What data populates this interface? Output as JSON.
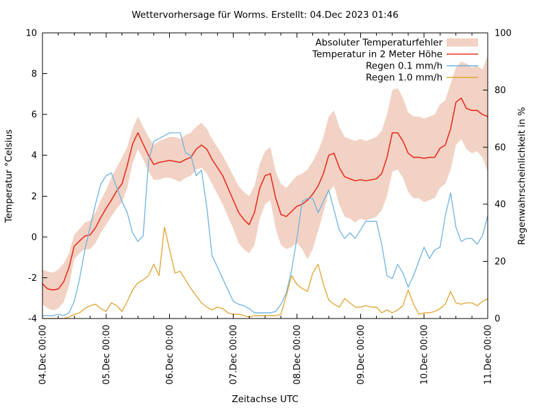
{
  "title": "Wettervorhersage für Worms. Erstellt: 04.Dec 2023 01:46",
  "chart_data": {
    "type": "line",
    "title": "Wettervorhersage für Worms. Erstellt: 04.Dec 2023 01:46",
    "xlabel": "Zeitachse UTC",
    "ylabel_left": "Temperatur °Celsius",
    "ylabel_right": "Regenwahrscheinlichkeit in %",
    "x_tick_labels": [
      "04.Dec 00:00",
      "05.Dec 00:00",
      "06.Dec 00:00",
      "07.Dec 00:00",
      "08.Dec 00:00",
      "09.Dec 00:00",
      "10.Dec 00:00",
      "11.Dec 00:00"
    ],
    "x_range_hours": [
      0,
      168
    ],
    "x_step_hours": 2,
    "x_major_tick_hours": 24,
    "x_minor_tick_hours": 6,
    "y_left_range": [
      -4,
      10
    ],
    "y_left_ticks": [
      -4,
      -2,
      0,
      2,
      4,
      6,
      8,
      10
    ],
    "y_right_range": [
      0,
      100
    ],
    "y_right_ticks": [
      0,
      20,
      40,
      60,
      80,
      100
    ],
    "grid": false,
    "legend_position": "top-right-inside",
    "colors": {
      "temperature_error_band": "#f2d2c4",
      "temperature_line": "#e62e1f",
      "rain_0_1_line": "#6cb1e1",
      "rain_1_0_line": "#e0a12b",
      "axis": "#000000",
      "background": "#ffffff"
    },
    "legend": [
      {
        "label": "Absoluter Temperaturfehler",
        "swatch": "band",
        "series": "temperature_error"
      },
      {
        "label": "Temperatur in 2 Meter Höhe",
        "swatch": "line",
        "series": "temperature"
      },
      {
        "label": "Regen 0.1 mm/h",
        "swatch": "line",
        "series": "rain_0_1"
      },
      {
        "label": "Regen 1.0 mm/h",
        "swatch": "line",
        "series": "rain_1_0"
      }
    ],
    "series": {
      "temperature_c": [
        -2.3,
        -2.55,
        -2.6,
        -2.55,
        -2.2,
        -1.5,
        -0.45,
        -0.2,
        0.05,
        0.1,
        0.45,
        0.95,
        1.4,
        1.8,
        2.25,
        2.6,
        3.5,
        4.55,
        5.1,
        4.55,
        4.0,
        3.55,
        3.65,
        3.7,
        3.75,
        3.7,
        3.65,
        3.8,
        3.9,
        4.3,
        4.5,
        4.3,
        3.8,
        3.4,
        3.0,
        2.4,
        1.8,
        1.2,
        0.85,
        0.6,
        1.2,
        2.4,
        3.0,
        3.1,
        1.9,
        1.1,
        1.0,
        1.25,
        1.5,
        1.6,
        1.8,
        2.1,
        2.5,
        3.1,
        4.0,
        4.1,
        3.4,
        2.95,
        2.85,
        2.75,
        2.8,
        2.75,
        2.8,
        2.85,
        3.1,
        3.9,
        5.1,
        5.1,
        4.7,
        4.1,
        3.9,
        3.9,
        3.85,
        3.9,
        3.9,
        4.35,
        4.5,
        5.3,
        6.6,
        6.8,
        6.3,
        6.2,
        6.2,
        6.0,
        5.9
      ],
      "temperature_error_upper_c": [
        -1.6,
        -1.7,
        -1.75,
        -1.6,
        -1.3,
        -0.8,
        0.1,
        0.4,
        0.7,
        0.8,
        1.2,
        1.8,
        2.3,
        2.9,
        3.4,
        3.9,
        4.4,
        5.3,
        5.9,
        5.4,
        4.9,
        4.5,
        4.7,
        4.8,
        4.9,
        4.9,
        4.8,
        5.0,
        5.1,
        5.4,
        5.6,
        5.3,
        4.8,
        4.4,
        4.0,
        3.5,
        3.0,
        2.5,
        2.2,
        2.0,
        2.5,
        3.6,
        4.2,
        4.4,
        3.2,
        2.6,
        2.4,
        2.7,
        3.0,
        3.1,
        3.3,
        3.7,
        4.2,
        4.9,
        5.9,
        6.2,
        5.4,
        4.9,
        4.8,
        4.7,
        4.8,
        4.7,
        4.8,
        4.9,
        5.2,
        6.0,
        7.2,
        7.3,
        6.8,
        6.1,
        5.9,
        5.9,
        5.8,
        5.9,
        6.0,
        6.5,
        6.7,
        7.5,
        8.3,
        8.6,
        8.5,
        8.3,
        8.4,
        8.2,
        8.9
      ],
      "temperature_error_lower_c": [
        -3.3,
        -3.5,
        -3.6,
        -3.5,
        -3.2,
        -2.4,
        -1.1,
        -0.8,
        -0.6,
        -0.6,
        -0.3,
        0.2,
        0.6,
        1.0,
        1.4,
        1.7,
        2.4,
        3.6,
        4.3,
        3.8,
        3.2,
        2.8,
        2.8,
        2.9,
        2.9,
        2.8,
        2.7,
        2.9,
        3.0,
        3.3,
        3.4,
        3.1,
        2.6,
        2.1,
        1.6,
        1.0,
        0.4,
        -0.3,
        -0.6,
        -0.8,
        -0.4,
        0.9,
        1.6,
        1.8,
        0.4,
        -0.4,
        -0.6,
        -0.5,
        -0.3,
        -0.6,
        -1.1,
        -0.6,
        0.3,
        1.2,
        2.2,
        2.5,
        1.6,
        1.0,
        0.9,
        0.7,
        0.9,
        0.8,
        0.9,
        1.0,
        1.3,
        2.0,
        3.2,
        3.3,
        2.9,
        2.2,
        1.9,
        1.9,
        1.7,
        1.8,
        1.9,
        2.4,
        2.6,
        3.3,
        4.5,
        4.8,
        4.3,
        4.1,
        4.2,
        3.9,
        3.2
      ],
      "rain_0_1_probability_pct": [
        1,
        1,
        1,
        1.5,
        1,
        2,
        6,
        14,
        24,
        32,
        40,
        47,
        50,
        51,
        46,
        41,
        37,
        30,
        27,
        29,
        55,
        62,
        63,
        64,
        65,
        65,
        65,
        58,
        57,
        50,
        52,
        39,
        22,
        18,
        14,
        10,
        6,
        5,
        4.5,
        3.5,
        2,
        2,
        2,
        2,
        2.5,
        5,
        9,
        17,
        28,
        41,
        42,
        42,
        37,
        41,
        45,
        38,
        31,
        28,
        30,
        28,
        31,
        34,
        34,
        34,
        26,
        15,
        14,
        19,
        16,
        11,
        15,
        20,
        25,
        21,
        24,
        25,
        36,
        44,
        32,
        27,
        28,
        28,
        26,
        29,
        36
      ],
      "rain_1_0_probability_pct": [
        0,
        0,
        0,
        0,
        0,
        0.5,
        1.5,
        2,
        3.5,
        4.5,
        5,
        3.5,
        2.5,
        5.5,
        4.5,
        2.5,
        6,
        10,
        12.5,
        13.5,
        15,
        19,
        15,
        32,
        24,
        16,
        16.5,
        13.5,
        10.5,
        8,
        5.5,
        4,
        3,
        4,
        3.5,
        2,
        1.5,
        1.5,
        1,
        0.5,
        1,
        1,
        1,
        1,
        1,
        1.5,
        8,
        15,
        12,
        10.5,
        9.5,
        16,
        19,
        12,
        6.5,
        5,
        4,
        7,
        5.5,
        4,
        4,
        4.5,
        4,
        4,
        2,
        3,
        2,
        3,
        4.5,
        10,
        5,
        1.5,
        2,
        2,
        2.5,
        3.5,
        5,
        9.5,
        5.5,
        5,
        5.5,
        5.5,
        4.5,
        6,
        7
      ]
    }
  }
}
